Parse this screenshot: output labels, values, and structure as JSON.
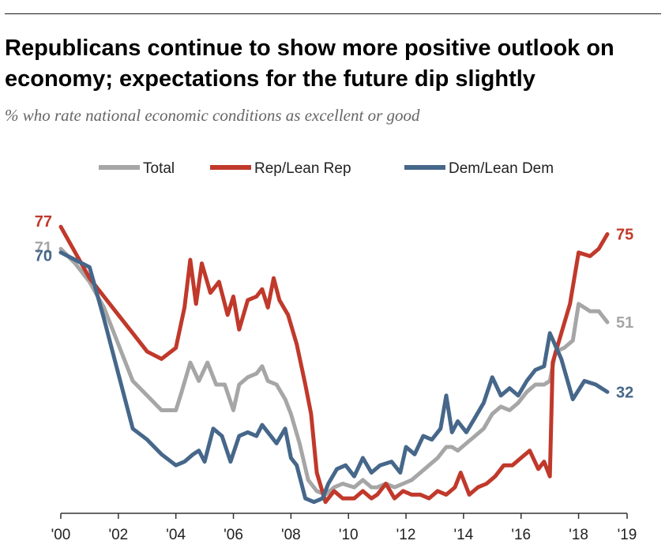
{
  "title": "Republicans continue to show more positive outlook on economy; expectations for the future dip slightly",
  "subtitle": "% who rate national economic conditions as excellent or good",
  "colors": {
    "total": "#a6a6a6",
    "rep": "#c0392b",
    "dem": "#46678a",
    "axis": "#333333"
  },
  "chart_data": {
    "type": "line",
    "title": "Republicans continue to show more positive outlook on economy; expectations for the future dip slightly",
    "subtitle": "% who rate national economic conditions as excellent or good",
    "xlabel": "",
    "ylabel": "",
    "x_tick_labels": [
      "'00",
      "'02",
      "'04",
      "'06",
      "'08",
      "'10",
      "'12",
      "'14",
      "'16",
      "'18",
      "'19"
    ],
    "x_tick_years": [
      2000,
      2002,
      2004,
      2006,
      2008,
      2010,
      2012,
      2014,
      2016,
      2018,
      2019
    ],
    "xlim": [
      2000,
      2019
    ],
    "ylim": [
      0,
      85
    ],
    "grid": false,
    "legend_position": "top",
    "series": [
      {
        "name": "Total",
        "key": "total",
        "end_labels": [
          "71",
          "51"
        ],
        "points": [
          [
            2000.0,
            71
          ],
          [
            2000.5,
            67
          ],
          [
            2001.0,
            62
          ],
          [
            2001.5,
            55
          ],
          [
            2002.0,
            45
          ],
          [
            2002.5,
            35
          ],
          [
            2003.0,
            31
          ],
          [
            2003.5,
            27
          ],
          [
            2004.0,
            27
          ],
          [
            2004.2,
            32
          ],
          [
            2004.5,
            40
          ],
          [
            2004.8,
            35
          ],
          [
            2005.1,
            40
          ],
          [
            2005.4,
            34
          ],
          [
            2005.7,
            34
          ],
          [
            2006.0,
            27
          ],
          [
            2006.2,
            34
          ],
          [
            2006.5,
            36
          ],
          [
            2006.8,
            37
          ],
          [
            2007.0,
            39
          ],
          [
            2007.2,
            35
          ],
          [
            2007.5,
            34
          ],
          [
            2007.8,
            30
          ],
          [
            2008.0,
            26
          ],
          [
            2008.3,
            18
          ],
          [
            2008.6,
            8
          ],
          [
            2008.9,
            5
          ],
          [
            2009.2,
            4
          ],
          [
            2009.5,
            6
          ],
          [
            2009.8,
            7
          ],
          [
            2010.2,
            6
          ],
          [
            2010.5,
            8
          ],
          [
            2010.8,
            6
          ],
          [
            2011.0,
            6
          ],
          [
            2011.3,
            7
          ],
          [
            2011.6,
            6
          ],
          [
            2011.9,
            7
          ],
          [
            2012.2,
            8
          ],
          [
            2012.5,
            10
          ],
          [
            2012.8,
            12
          ],
          [
            2013.1,
            14
          ],
          [
            2013.4,
            17
          ],
          [
            2013.6,
            17
          ],
          [
            2013.8,
            16
          ],
          [
            2014.1,
            18
          ],
          [
            2014.4,
            20
          ],
          [
            2014.7,
            22
          ],
          [
            2015.0,
            26
          ],
          [
            2015.3,
            28
          ],
          [
            2015.6,
            27
          ],
          [
            2015.9,
            29
          ],
          [
            2016.2,
            32
          ],
          [
            2016.5,
            34
          ],
          [
            2016.8,
            34
          ],
          [
            2017.0,
            35
          ],
          [
            2017.2,
            43
          ],
          [
            2017.5,
            44
          ],
          [
            2017.8,
            46
          ],
          [
            2018.0,
            56
          ],
          [
            2018.4,
            54
          ],
          [
            2018.7,
            54
          ],
          [
            2019.0,
            51
          ]
        ]
      },
      {
        "name": "Rep/Lean Rep",
        "key": "rep",
        "end_labels": [
          "77",
          "75"
        ],
        "points": [
          [
            2000.0,
            77
          ],
          [
            2000.5,
            70
          ],
          [
            2001.0,
            63
          ],
          [
            2001.5,
            58
          ],
          [
            2002.0,
            53
          ],
          [
            2002.5,
            48
          ],
          [
            2003.0,
            43
          ],
          [
            2003.5,
            41
          ],
          [
            2004.0,
            44
          ],
          [
            2004.3,
            55
          ],
          [
            2004.5,
            68
          ],
          [
            2004.7,
            56
          ],
          [
            2004.9,
            67
          ],
          [
            2005.2,
            59
          ],
          [
            2005.5,
            62
          ],
          [
            2005.8,
            53
          ],
          [
            2006.0,
            58
          ],
          [
            2006.2,
            49
          ],
          [
            2006.5,
            57
          ],
          [
            2006.8,
            58
          ],
          [
            2007.0,
            60
          ],
          [
            2007.2,
            55
          ],
          [
            2007.4,
            63
          ],
          [
            2007.6,
            57
          ],
          [
            2007.9,
            53
          ],
          [
            2008.2,
            45
          ],
          [
            2008.5,
            34
          ],
          [
            2008.7,
            26
          ],
          [
            2008.9,
            10
          ],
          [
            2009.2,
            2
          ],
          [
            2009.5,
            5
          ],
          [
            2009.8,
            3
          ],
          [
            2010.2,
            3
          ],
          [
            2010.5,
            5
          ],
          [
            2010.8,
            3
          ],
          [
            2011.0,
            4
          ],
          [
            2011.3,
            7
          ],
          [
            2011.6,
            3
          ],
          [
            2011.9,
            5
          ],
          [
            2012.2,
            4
          ],
          [
            2012.5,
            4
          ],
          [
            2012.8,
            3
          ],
          [
            2013.1,
            5
          ],
          [
            2013.4,
            4
          ],
          [
            2013.7,
            6
          ],
          [
            2013.9,
            10
          ],
          [
            2014.2,
            4
          ],
          [
            2014.5,
            6
          ],
          [
            2014.8,
            7
          ],
          [
            2015.1,
            9
          ],
          [
            2015.4,
            12
          ],
          [
            2015.7,
            12
          ],
          [
            2016.0,
            14
          ],
          [
            2016.3,
            16
          ],
          [
            2016.6,
            11
          ],
          [
            2016.8,
            13
          ],
          [
            2017.0,
            9
          ],
          [
            2017.1,
            40
          ],
          [
            2017.4,
            48
          ],
          [
            2017.7,
            56
          ],
          [
            2018.0,
            70
          ],
          [
            2018.4,
            69
          ],
          [
            2018.7,
            71
          ],
          [
            2019.0,
            75
          ]
        ]
      },
      {
        "name": "Dem/Lean Dem",
        "key": "dem",
        "end_labels": [
          "70",
          "32"
        ],
        "points": [
          [
            2000.0,
            70
          ],
          [
            2000.5,
            68
          ],
          [
            2001.0,
            66
          ],
          [
            2001.5,
            52
          ],
          [
            2002.0,
            37
          ],
          [
            2002.5,
            22
          ],
          [
            2003.0,
            19
          ],
          [
            2003.5,
            15
          ],
          [
            2004.0,
            12
          ],
          [
            2004.3,
            13
          ],
          [
            2004.6,
            15
          ],
          [
            2004.8,
            16
          ],
          [
            2005.0,
            13
          ],
          [
            2005.3,
            22
          ],
          [
            2005.6,
            20
          ],
          [
            2005.9,
            13
          ],
          [
            2006.2,
            20
          ],
          [
            2006.5,
            21
          ],
          [
            2006.8,
            20
          ],
          [
            2007.0,
            23
          ],
          [
            2007.2,
            21
          ],
          [
            2007.5,
            18
          ],
          [
            2007.8,
            22
          ],
          [
            2008.0,
            14
          ],
          [
            2008.2,
            12
          ],
          [
            2008.5,
            3
          ],
          [
            2008.8,
            2
          ],
          [
            2009.1,
            3
          ],
          [
            2009.3,
            7
          ],
          [
            2009.6,
            11
          ],
          [
            2009.9,
            12
          ],
          [
            2010.2,
            9
          ],
          [
            2010.5,
            14
          ],
          [
            2010.8,
            10
          ],
          [
            2011.1,
            12
          ],
          [
            2011.5,
            13
          ],
          [
            2011.8,
            10
          ],
          [
            2012.0,
            17
          ],
          [
            2012.3,
            15
          ],
          [
            2012.6,
            20
          ],
          [
            2012.9,
            19
          ],
          [
            2013.2,
            22
          ],
          [
            2013.4,
            31
          ],
          [
            2013.6,
            21
          ],
          [
            2013.8,
            24
          ],
          [
            2014.1,
            21
          ],
          [
            2014.4,
            25
          ],
          [
            2014.7,
            29
          ],
          [
            2015.0,
            36
          ],
          [
            2015.3,
            31
          ],
          [
            2015.6,
            33
          ],
          [
            2015.9,
            31
          ],
          [
            2016.2,
            35
          ],
          [
            2016.5,
            38
          ],
          [
            2016.8,
            39
          ],
          [
            2017.0,
            48
          ],
          [
            2017.4,
            41
          ],
          [
            2017.8,
            30
          ],
          [
            2018.2,
            35
          ],
          [
            2018.6,
            34
          ],
          [
            2019.0,
            32
          ]
        ]
      }
    ]
  }
}
